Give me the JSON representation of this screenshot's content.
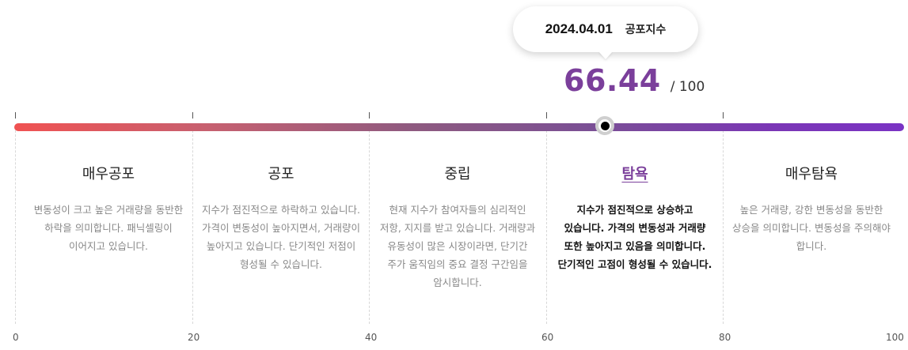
{
  "tooltip": {
    "date": "2024.04.01",
    "label": "공포지수"
  },
  "score": {
    "value": "66.44",
    "max": "/ 100",
    "current_level": 66.44
  },
  "gauge": {
    "gradient_start": "#f05252",
    "gradient_end": "#7a33c4",
    "accent": "#7b3f9b"
  },
  "segments": [
    {
      "title": "매우공포",
      "description": "변동성이 크고 높은 거래량을 동반한 하락을 의미합니다. 패닉셀링이 이어지고 있습니다.",
      "active": false
    },
    {
      "title": "공포",
      "description": "지수가 점진적으로 하락하고 있습니다. 가격이 변동성이 높아지면서, 거래량이 높아지고 있습니다. 단기적인 저점이 형성될 수 있습니다.",
      "active": false
    },
    {
      "title": "중립",
      "description": "현재 지수가 참여자들의 심리적인 저항, 지지를 받고 있습니다. 거래량과 유동성이 많은 시장이라면, 단기간 주가 움직임의 중요 결정 구간임을 암시합니다.",
      "active": false
    },
    {
      "title": "탐욕",
      "description": "지수가 점진적으로 상승하고 있습니다. 가격의 변동성과 거래량 또한 높아지고 있음을 의미합니다. 단기적인 고점이 형성될 수 있습니다.",
      "active": true
    },
    {
      "title": "매우탐욕",
      "description": "높은 거래량, 강한 변동성을 동반한 상승을 의미합니다. 변동성을 주의해야 합니다.",
      "active": false
    }
  ],
  "axis": {
    "labels": [
      "0",
      "20",
      "40",
      "60",
      "80",
      "100"
    ]
  }
}
